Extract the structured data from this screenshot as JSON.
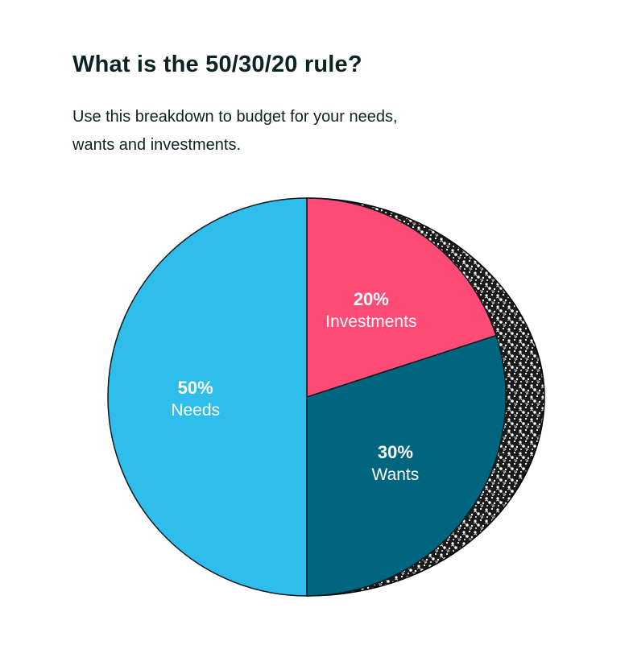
{
  "title": "What is the 50/30/20 rule?",
  "subtitle": "Use this breakdown to budget for your needs, wants and investments.",
  "chart_data": {
    "type": "pie",
    "slices": [
      {
        "pct_label": "50%",
        "label": "Needs",
        "value": 50,
        "color": "#2fbeeb"
      },
      {
        "pct_label": "30%",
        "label": "Wants",
        "value": 30,
        "color": "#006680"
      },
      {
        "pct_label": "20%",
        "label": "Investments",
        "value": 20,
        "color": "#ff4c77"
      }
    ],
    "start_angle_deg": 0,
    "direction": "counterclockwise-from-top",
    "shadow_texture": "speckled-black-white"
  }
}
